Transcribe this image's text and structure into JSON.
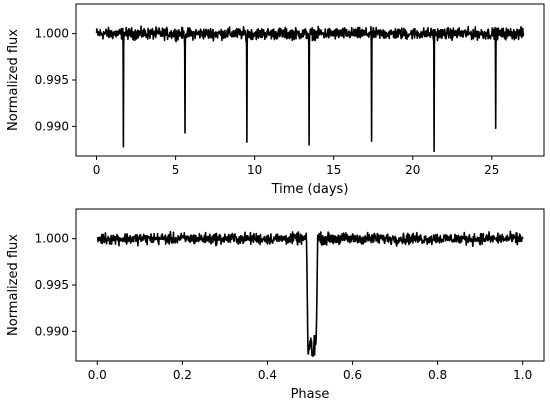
{
  "chart_data": [
    {
      "type": "line",
      "title": "",
      "xlabel": "Time (days)",
      "ylabel": "Normalized flux",
      "xlim": [
        -1.3,
        28.3
      ],
      "ylim": [
        0.9868,
        1.0032
      ],
      "xticks": [
        0,
        5,
        10,
        15,
        20,
        25
      ],
      "xtick_labels": [
        "0",
        "5",
        "10",
        "15",
        "20",
        "25"
      ],
      "yticks": [
        0.99,
        0.995,
        1.0
      ],
      "ytick_labels": [
        "0.990",
        "0.995",
        "1.000"
      ],
      "grid": false,
      "series": [
        {
          "color": "#000000",
          "x_range": [
            0,
            27
          ],
          "baseline": 1.0,
          "noise_amplitude": 0.0009,
          "transit_times": [
            1.7,
            5.6,
            9.5,
            13.45,
            17.4,
            21.35,
            25.25
          ],
          "transit_minima": [
            0.9878,
            0.9893,
            0.9883,
            0.988,
            0.9884,
            0.9873,
            0.9898
          ]
        }
      ]
    },
    {
      "type": "line",
      "title": "",
      "xlabel": "Phase",
      "ylabel": "Normalized flux",
      "xlim": [
        -0.05,
        1.05
      ],
      "ylim": [
        0.9868,
        1.0032
      ],
      "xticks": [
        0.0,
        0.2,
        0.4,
        0.6,
        0.8,
        1.0
      ],
      "xtick_labels": [
        "0.0",
        "0.2",
        "0.4",
        "0.6",
        "0.8",
        "1.0"
      ],
      "yticks": [
        0.99,
        0.995,
        1.0
      ],
      "ytick_labels": [
        "0.990",
        "0.995",
        "1.000"
      ],
      "grid": false,
      "series": [
        {
          "color": "#000000",
          "x_range": [
            0,
            1
          ],
          "baseline": 1.0,
          "noise_amplitude": 0.0009,
          "transit_center": 0.505,
          "transit_minimum": 0.9873,
          "transit_ingress": 0.492,
          "transit_egress": 0.518
        }
      ]
    }
  ]
}
